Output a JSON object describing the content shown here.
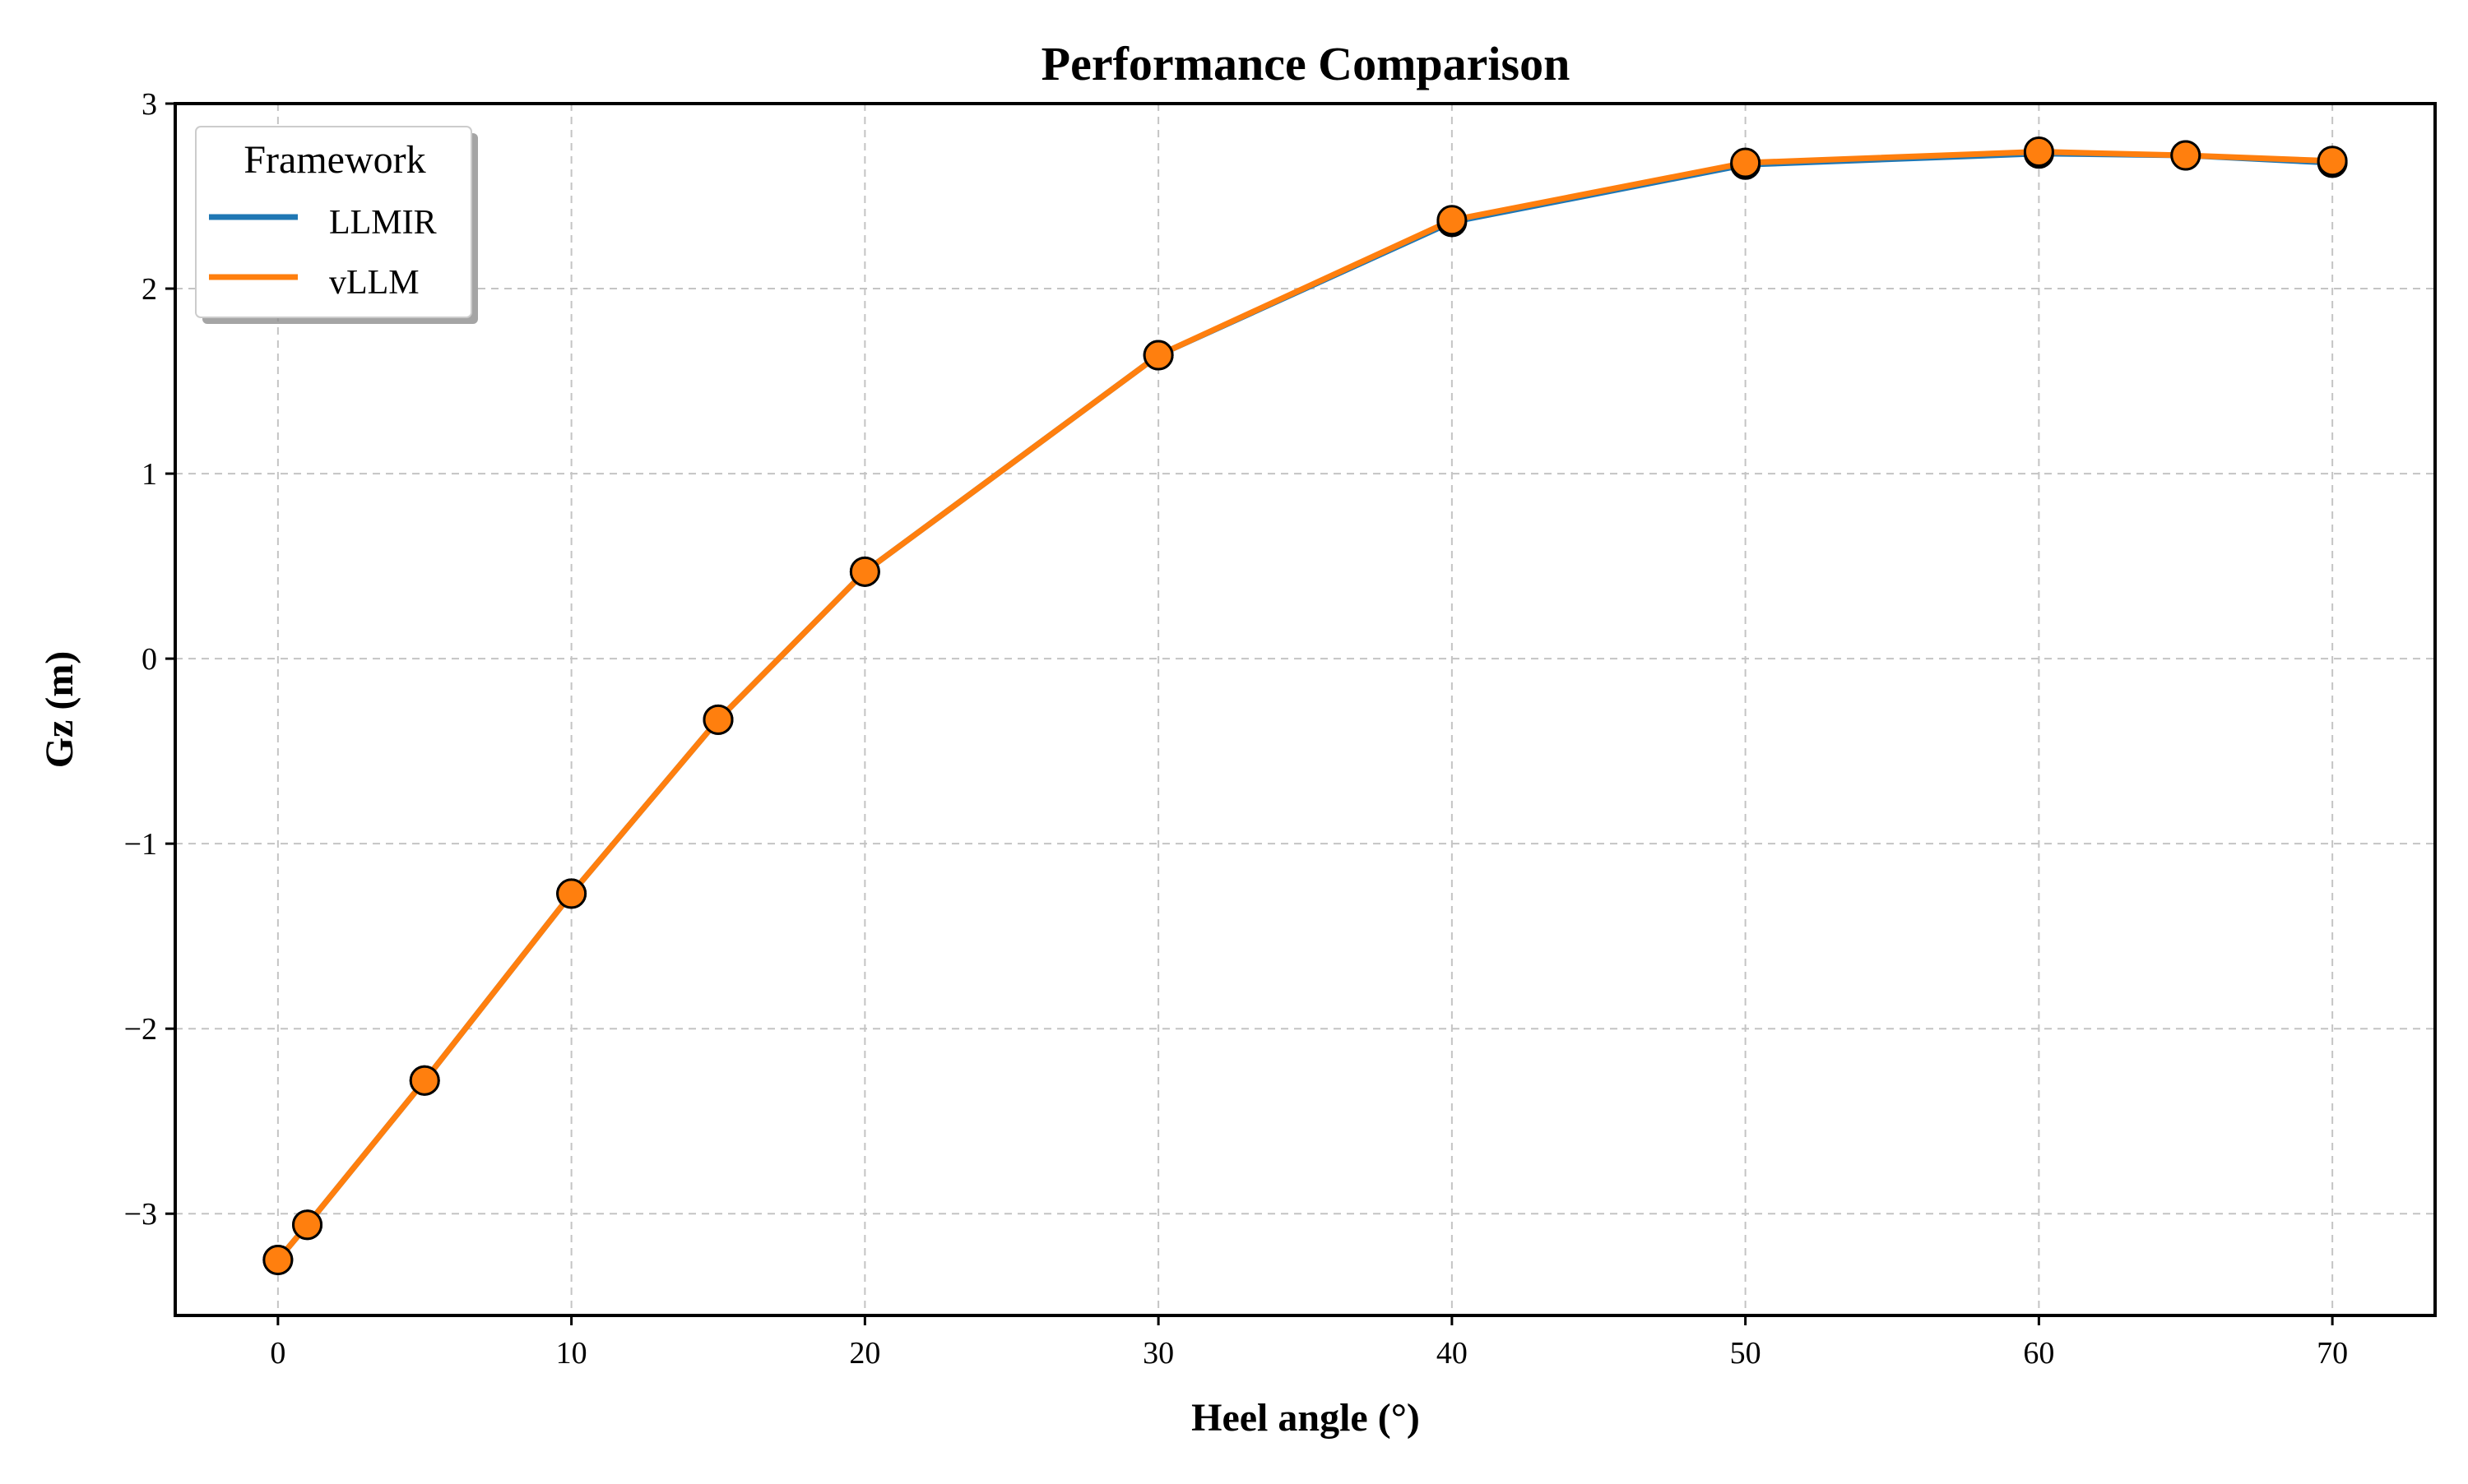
{
  "chart_data": {
    "type": "line",
    "title": "Performance Comparison",
    "xlabel": "Heel angle (°)",
    "ylabel": "Gz (m)",
    "xlim": [
      -3.5,
      73.5
    ],
    "ylim": [
      -3.55,
      3.0
    ],
    "x_ticks": [
      0,
      10,
      20,
      30,
      40,
      50,
      60,
      70
    ],
    "y_ticks": [
      -3,
      -2,
      -1,
      0,
      1,
      2,
      3
    ],
    "y_tick_labels": [
      "−3",
      "−2",
      "−1",
      "0",
      "1",
      "2",
      "3"
    ],
    "grid": true,
    "legend": {
      "title": "Framework",
      "placement": "top-left"
    },
    "x": [
      0,
      1,
      5,
      10,
      15,
      20,
      30,
      40,
      50,
      60,
      65,
      70
    ],
    "series": [
      {
        "name": "LLMIR",
        "color": "#1f77b4",
        "values": [
          -3.25,
          -3.06,
          -2.28,
          -1.27,
          -0.33,
          0.47,
          1.64,
          2.36,
          2.67,
          2.73,
          2.72,
          2.68
        ]
      },
      {
        "name": "vLLM",
        "color": "#ff7f0e",
        "values": [
          -3.25,
          -3.06,
          -2.28,
          -1.27,
          -0.33,
          0.47,
          1.64,
          2.37,
          2.68,
          2.74,
          2.72,
          2.69
        ]
      }
    ]
  }
}
